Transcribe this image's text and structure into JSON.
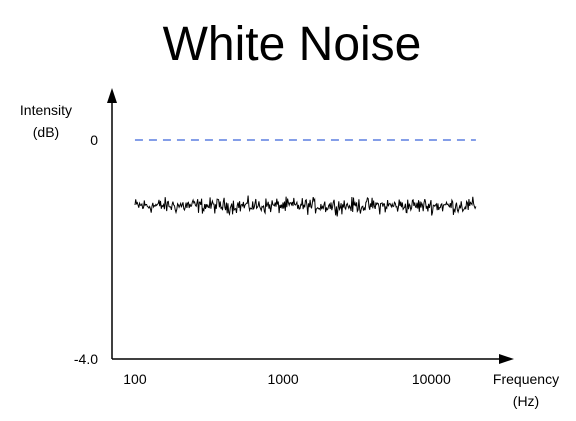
{
  "chart_data": {
    "type": "line",
    "title": "White Noise",
    "ylabel": [
      "Intensity",
      "(dB)"
    ],
    "xlabel": [
      "Frequency",
      "(Hz)"
    ],
    "xscale": "log",
    "xlim": [
      70,
      30000
    ],
    "ylim": [
      -4.0,
      0
    ],
    "y_ticks": [
      {
        "value": 0,
        "label": "0"
      },
      {
        "value": -4.0,
        "label": "-4.0"
      }
    ],
    "x_ticks": [
      {
        "value": 100,
        "label": "100"
      },
      {
        "value": 1000,
        "label": "1000"
      },
      {
        "value": 10000,
        "label": "10000"
      }
    ],
    "series": [
      {
        "kind": "reference",
        "value": 0,
        "x_range": [
          100,
          20000
        ],
        "style": "dashed",
        "color": "#5b7fe0"
      },
      {
        "kind": "noise",
        "mean": -1.2,
        "spread": 0.13,
        "x_range": [
          100,
          20000
        ],
        "color": "#000000"
      }
    ],
    "grid": false,
    "legend": "none"
  }
}
